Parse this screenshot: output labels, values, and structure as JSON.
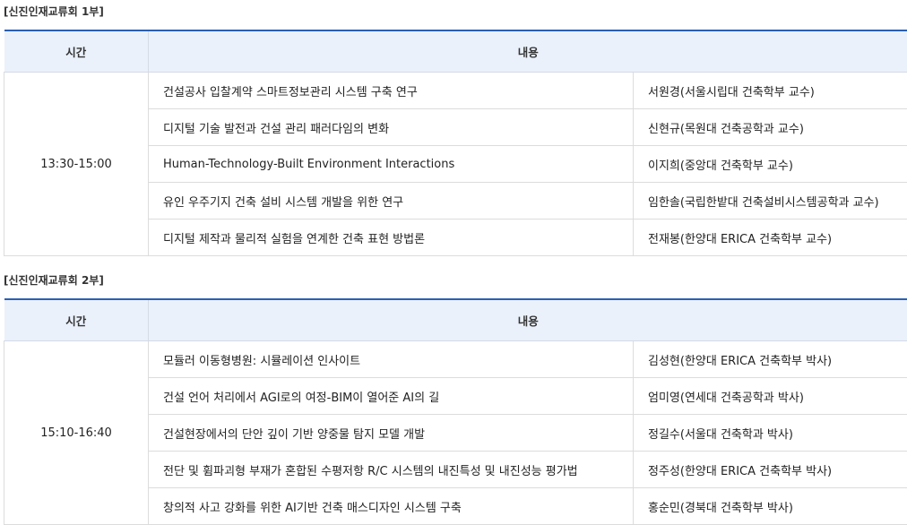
{
  "sections": [
    {
      "title": "[신진인재교류회 1부]",
      "header": {
        "time": "시간",
        "content": "내용"
      },
      "time": "13:30-15:00",
      "rows": [
        {
          "topic": "건설공사 입찰계약 스마트정보관리 시스템 구축 연구",
          "speaker": "서원경(서울시립대 건축학부 교수)"
        },
        {
          "topic": "디지털 기술 발전과 건설 관리 패러다임의 변화",
          "speaker": "신현규(목원대 건축공학과 교수)"
        },
        {
          "topic": "Human-Technology-Built Environment Interactions",
          "speaker": "이지희(중앙대 건축학부 교수)"
        },
        {
          "topic": "유인 우주기지 건축 설비 시스템 개발을 위한 연구",
          "speaker": "임한솔(국립한밭대 건축설비시스템공학과 교수)"
        },
        {
          "topic": "디지털 제작과 물리적 실험을 연계한 건축 표현 방법론",
          "speaker": "전재봉(한양대 ERICA 건축학부 교수)"
        }
      ]
    },
    {
      "title": "[신진인재교류회 2부]",
      "header": {
        "time": "시간",
        "content": "내용"
      },
      "time": "15:10-16:40",
      "rows": [
        {
          "topic": "모듈러 이동형병원: 시뮬레이션 인사이트",
          "speaker": "김성현(한양대 ERICA 건축학부 박사)"
        },
        {
          "topic": "건설 언어 처리에서 AGI로의 여정-BIM이 열어준 AI의 길",
          "speaker": "엄미영(연세대 건축공학과 박사)"
        },
        {
          "topic": "건설현장에서의 단안 깊이 기반 양중물 탐지 모델 개발",
          "speaker": "정길수(서울대 건축학과 박사)"
        },
        {
          "topic": "전단 및 휨파괴형 부재가 혼합된 수평저항 R/C 시스템의 내진특성 및 내진성능 평가법",
          "speaker": "정주성(한양대 ERICA 건축학부 박사)"
        },
        {
          "topic": "창의적 사고 강화를 위한 AI기반 건축 매스디자인 시스템 구축",
          "speaker": "홍순민(경북대 건축학부 박사)"
        }
      ]
    }
  ]
}
